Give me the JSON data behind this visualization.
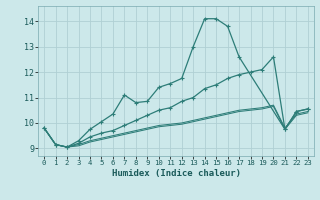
{
  "xlabel": "Humidex (Indice chaleur)",
  "bg_color": "#cce8ea",
  "grid_color": "#b0d0d4",
  "line_color": "#2d7d78",
  "xlim": [
    -0.5,
    23.5
  ],
  "ylim": [
    8.7,
    14.6
  ],
  "yticks": [
    9,
    10,
    11,
    12,
    13,
    14
  ],
  "xticks": [
    0,
    1,
    2,
    3,
    4,
    5,
    6,
    7,
    8,
    9,
    10,
    11,
    12,
    13,
    14,
    15,
    16,
    17,
    18,
    19,
    20,
    21,
    22,
    23
  ],
  "series": [
    {
      "x": [
        0,
        1,
        2,
        3,
        4,
        5,
        6,
        7,
        8,
        9,
        10,
        11,
        12,
        13,
        14,
        15,
        16,
        17,
        21,
        22,
        23
      ],
      "y": [
        9.8,
        9.15,
        9.05,
        9.3,
        9.75,
        10.05,
        10.35,
        11.1,
        10.8,
        10.85,
        11.4,
        11.55,
        11.75,
        13.0,
        14.1,
        14.1,
        13.8,
        12.6,
        9.75,
        10.45,
        10.55
      ],
      "marker": true
    },
    {
      "x": [
        0,
        1,
        2,
        3,
        4,
        5,
        6,
        7,
        8,
        9,
        10,
        11,
        12,
        13,
        14,
        15,
        16,
        17,
        18,
        19,
        20,
        21,
        22,
        23
      ],
      "y": [
        9.8,
        9.15,
        9.05,
        9.2,
        9.45,
        9.6,
        9.7,
        9.9,
        10.1,
        10.3,
        10.5,
        10.6,
        10.85,
        11.0,
        11.35,
        11.5,
        11.75,
        11.9,
        12.0,
        12.1,
        12.6,
        9.75,
        10.45,
        10.55
      ],
      "marker": true
    },
    {
      "x": [
        0,
        1,
        2,
        3,
        4,
        5,
        6,
        7,
        8,
        9,
        10,
        11,
        12,
        13,
        14,
        15,
        16,
        17,
        18,
        19,
        20,
        21,
        22,
        23
      ],
      "y": [
        9.8,
        9.15,
        9.05,
        9.15,
        9.3,
        9.4,
        9.5,
        9.6,
        9.7,
        9.8,
        9.9,
        9.95,
        10.0,
        10.1,
        10.2,
        10.3,
        10.4,
        10.5,
        10.55,
        10.6,
        10.7,
        9.8,
        10.35,
        10.45
      ],
      "marker": false
    },
    {
      "x": [
        0,
        1,
        2,
        3,
        4,
        5,
        6,
        7,
        8,
        9,
        10,
        11,
        12,
        13,
        14,
        15,
        16,
        17,
        18,
        19,
        20,
        21,
        22,
        23
      ],
      "y": [
        9.8,
        9.15,
        9.05,
        9.1,
        9.25,
        9.35,
        9.45,
        9.55,
        9.65,
        9.75,
        9.85,
        9.9,
        9.95,
        10.05,
        10.15,
        10.25,
        10.35,
        10.45,
        10.5,
        10.55,
        10.65,
        9.75,
        10.3,
        10.4
      ],
      "marker": false
    }
  ]
}
